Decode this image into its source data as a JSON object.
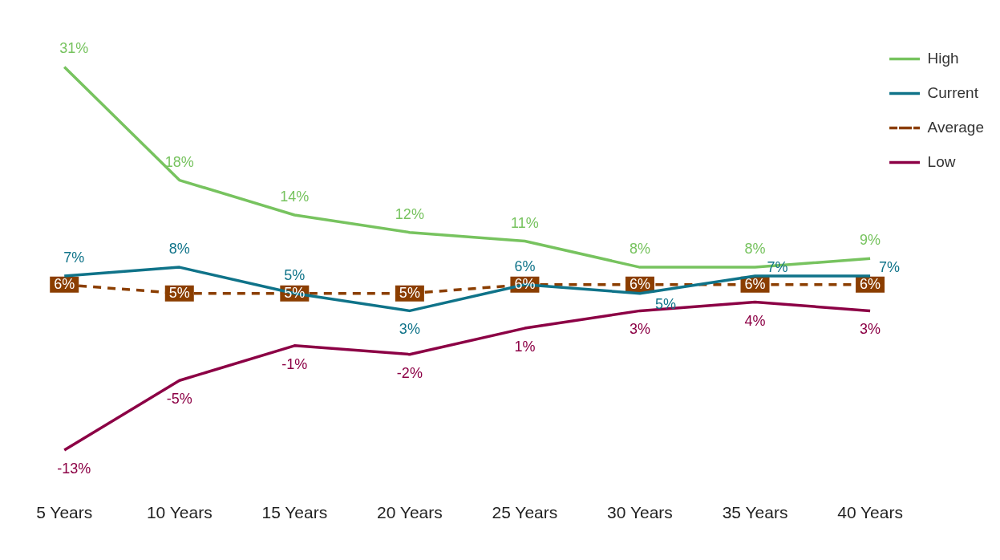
{
  "chart_data": {
    "type": "line",
    "categories": [
      "5 Years",
      "10 Years",
      "15 Years",
      "20 Years",
      "25 Years",
      "30 Years",
      "35 Years",
      "40 Years"
    ],
    "series": [
      {
        "name": "High",
        "color": "#77c35f",
        "values": [
          31,
          18,
          14,
          12,
          11,
          8,
          8,
          9
        ],
        "value_labels": [
          "31%",
          "18%",
          "14%",
          "12%",
          "11%",
          "8%",
          "8%",
          "9%"
        ]
      },
      {
        "name": "Current",
        "color": "#0f7389",
        "values": [
          7,
          8,
          5,
          3,
          6,
          5,
          7,
          7
        ],
        "value_labels": [
          "7%",
          "8%",
          "5%",
          "3%",
          "6%",
          "5%",
          "7%",
          "7%"
        ]
      },
      {
        "name": "Average",
        "color": "#8b3e00",
        "line_style": "dashed",
        "marker": "square",
        "values": [
          6,
          5,
          5,
          5,
          6,
          6,
          6,
          6
        ],
        "value_labels": [
          "6%",
          "5%",
          "5%",
          "5%",
          "6%",
          "6%",
          "6%",
          "6%"
        ]
      },
      {
        "name": "Low",
        "color": "#8c0045",
        "values": [
          -13,
          -5,
          -1,
          -2,
          1,
          3,
          4,
          3
        ],
        "value_labels": [
          "-13%",
          "-5%",
          "-1%",
          "-2%",
          "1%",
          "3%",
          "4%",
          "3%"
        ]
      }
    ],
    "legend": "top right",
    "grid": false,
    "marker": "none",
    "line_style": "solid"
  }
}
